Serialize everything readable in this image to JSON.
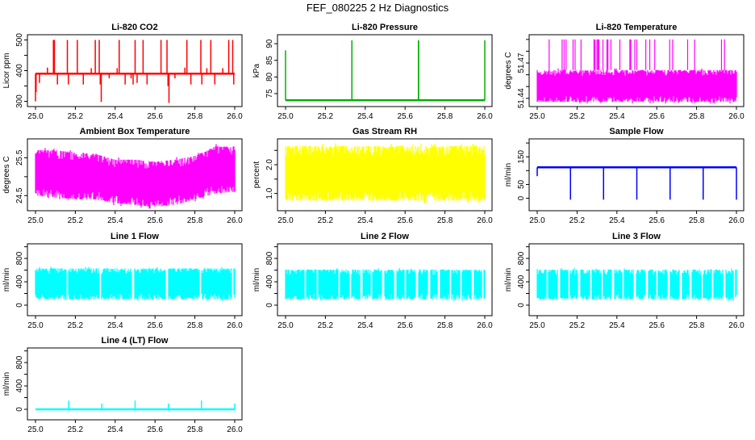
{
  "title": "FEF_080225  2 Hz Diagnostics",
  "chart_data": [
    {
      "type": "line",
      "title": "Li-820 CO2",
      "ylabel": "Licor ppm",
      "color": "#ff0000",
      "xlim": [
        25.0,
        26.0
      ],
      "xticks": [
        "25.0",
        "25.2",
        "25.4",
        "25.6",
        "25.8",
        "26.0"
      ],
      "ylim": [
        283,
        517
      ],
      "yticks": [
        300,
        350,
        400,
        450,
        500
      ],
      "ytick_labels": [
        "300",
        "",
        "400",
        "",
        "500"
      ],
      "baseline": 390,
      "spikes": [
        [
          25.0,
          300
        ],
        [
          25.003,
          330
        ],
        [
          25.02,
          360
        ],
        [
          25.06,
          410
        ],
        [
          25.09,
          500
        ],
        [
          25.095,
          500
        ],
        [
          25.11,
          355
        ],
        [
          25.16,
          500
        ],
        [
          25.165,
          355
        ],
        [
          25.21,
          500
        ],
        [
          25.24,
          355
        ],
        [
          25.28,
          408
        ],
        [
          25.3,
          500
        ],
        [
          25.32,
          500
        ],
        [
          25.325,
          355
        ],
        [
          25.33,
          298
        ],
        [
          25.37,
          375
        ],
        [
          25.41,
          408
        ],
        [
          25.42,
          500
        ],
        [
          25.45,
          355
        ],
        [
          25.48,
          375
        ],
        [
          25.49,
          355
        ],
        [
          25.5,
          500
        ],
        [
          25.51,
          360
        ],
        [
          25.54,
          500
        ],
        [
          25.56,
          355
        ],
        [
          25.63,
          500
        ],
        [
          25.66,
          500
        ],
        [
          25.665,
          350
        ],
        [
          25.67,
          295
        ],
        [
          25.7,
          375
        ],
        [
          25.75,
          410
        ],
        [
          25.76,
          500
        ],
        [
          25.78,
          355
        ],
        [
          25.83,
          500
        ],
        [
          25.835,
          355
        ],
        [
          25.86,
          408
        ],
        [
          25.88,
          500
        ],
        [
          25.9,
          355
        ],
        [
          25.94,
          408
        ],
        [
          25.97,
          500
        ],
        [
          25.99,
          500
        ],
        [
          25.995,
          355
        ]
      ]
    },
    {
      "type": "line",
      "title": "Li-820 Pressure",
      "ylabel": "kPa",
      "color": "#00b000",
      "xlim": [
        25.0,
        26.0
      ],
      "xticks": [
        "25.0",
        "25.2",
        "25.4",
        "25.6",
        "25.8",
        "26.0"
      ],
      "ylim": [
        71.1,
        92.7
      ],
      "yticks": [
        75,
        80,
        85,
        90
      ],
      "ytick_labels": [
        "75",
        "80",
        "85",
        "90"
      ],
      "baseline": 73,
      "spikes": [
        [
          25.0,
          88
        ],
        [
          25.333,
          91
        ],
        [
          25.667,
          91
        ],
        [
          25.668,
          91
        ],
        [
          26.0,
          91
        ]
      ]
    },
    {
      "type": "line",
      "title": "Li-820 Temperature",
      "ylabel": "degrees C",
      "color": "#ff00ff",
      "xlim": [
        25.0,
        26.0
      ],
      "xticks": [
        "25.0",
        "25.2",
        "25.4",
        "25.6",
        "25.8",
        "26.0"
      ],
      "ylim": [
        51.433,
        51.494
      ],
      "yticks": [
        51.44,
        51.45,
        51.46,
        51.47,
        51.48,
        51.49
      ],
      "ytick_labels": [
        "51.44",
        "",
        "",
        "51.47",
        "",
        ""
      ],
      "band": {
        "x": [
          25.0,
          26.0
        ],
        "lower": [
          51.437,
          51.437
        ],
        "upper": [
          51.464,
          51.464
        ]
      },
      "spikes": [
        [
          25.06,
          51.49
        ],
        [
          25.125,
          51.49
        ],
        [
          25.135,
          51.49
        ],
        [
          25.145,
          51.49
        ],
        [
          25.18,
          51.49
        ],
        [
          25.19,
          51.49
        ],
        [
          25.22,
          51.49
        ],
        [
          25.285,
          51.49
        ],
        [
          25.29,
          51.49
        ],
        [
          25.3,
          51.49
        ],
        [
          25.305,
          51.49
        ],
        [
          25.31,
          51.49
        ],
        [
          25.33,
          51.49
        ],
        [
          25.35,
          51.49
        ],
        [
          25.355,
          51.49
        ],
        [
          25.37,
          51.49
        ],
        [
          25.415,
          51.49
        ],
        [
          25.465,
          51.49
        ],
        [
          25.47,
          51.49
        ],
        [
          25.49,
          51.49
        ],
        [
          25.5,
          51.49
        ],
        [
          25.545,
          51.49
        ],
        [
          25.565,
          51.49
        ],
        [
          25.59,
          51.49
        ],
        [
          25.665,
          51.49
        ],
        [
          25.68,
          51.49
        ],
        [
          25.755,
          51.49
        ],
        [
          25.79,
          51.49
        ],
        [
          25.925,
          51.49
        ],
        [
          25.94,
          51.49
        ]
      ]
    },
    {
      "type": "line",
      "title": "Ambient Box Temperature",
      "ylabel": "degrees C",
      "color": "#ff00ff",
      "xlim": [
        25.0,
        26.0
      ],
      "xticks": [
        "25.0",
        "25.2",
        "25.4",
        "25.6",
        "25.8",
        "26.0"
      ],
      "ylim": [
        24.1,
        26.0
      ],
      "yticks": [
        24.5,
        25.0,
        25.5
      ],
      "ytick_labels": [
        "24.5",
        "",
        "25.5"
      ],
      "band": {
        "x": [
          25.0,
          25.1,
          25.2,
          25.3,
          25.4,
          25.5,
          25.6,
          25.7,
          25.8,
          25.9,
          26.0
        ],
        "lower": [
          24.5,
          24.45,
          24.4,
          24.4,
          24.3,
          24.25,
          24.2,
          24.25,
          24.4,
          24.55,
          24.6
        ],
        "upper": [
          25.7,
          25.7,
          25.65,
          25.6,
          25.45,
          25.45,
          25.4,
          25.45,
          25.55,
          25.8,
          25.8
        ]
      }
    },
    {
      "type": "line",
      "title": "Gas Stream RH",
      "ylabel": "percent",
      "color": "#ffff00",
      "xlim": [
        25.0,
        26.0
      ],
      "xticks": [
        "25.0",
        "25.2",
        "25.4",
        "25.6",
        "25.8",
        "26.0"
      ],
      "ylim": [
        0.4,
        2.9
      ],
      "yticks": [
        1.0,
        1.5,
        2.0,
        2.5
      ],
      "ytick_labels": [
        "1.0",
        "",
        "2.0",
        ""
      ],
      "band": {
        "x": [
          25.0,
          26.0
        ],
        "lower": [
          0.75,
          0.75
        ],
        "upper": [
          2.65,
          2.65
        ]
      }
    },
    {
      "type": "line",
      "title": "Sample Flow",
      "ylabel": "ml/min",
      "color": "#0000ff",
      "xlim": [
        25.0,
        26.0
      ],
      "xticks": [
        "25.0",
        "25.2",
        "25.4",
        "25.6",
        "25.8",
        "26.0"
      ],
      "ylim": [
        -45,
        215
      ],
      "yticks": [
        0,
        50,
        100,
        150,
        200
      ],
      "ytick_labels": [
        "0",
        "50",
        "",
        "150",
        ""
      ],
      "baseline": 112,
      "spikes": [
        [
          25.0,
          80
        ],
        [
          25.167,
          -5
        ],
        [
          25.333,
          -5
        ],
        [
          25.5,
          -5
        ],
        [
          25.667,
          -5
        ],
        [
          25.833,
          -5
        ],
        [
          26.0,
          -5
        ]
      ]
    },
    {
      "type": "line",
      "title": "Line 1 Flow",
      "ylabel": "ml/min",
      "color": "#00ffff",
      "xlim": [
        25.0,
        26.0
      ],
      "xticks": [
        "25.0",
        "25.2",
        "25.4",
        "25.6",
        "25.8",
        "26.0"
      ],
      "ylim": [
        -180,
        1050
      ],
      "yticks": [
        0,
        200,
        400,
        600,
        800,
        1000
      ],
      "ytick_labels": [
        "0",
        "",
        "400",
        "",
        "800",
        ""
      ],
      "band": {
        "x": [
          25.0,
          26.0
        ],
        "lower": [
          100,
          100
        ],
        "upper": [
          630,
          630
        ]
      },
      "gaps": [
        25.16,
        25.325,
        25.49,
        25.66,
        25.828,
        25.99
      ]
    },
    {
      "type": "line",
      "title": "Line 2 Flow",
      "ylabel": "ml/min",
      "color": "#00ffff",
      "xlim": [
        25.0,
        26.0
      ],
      "xticks": [
        "25.0",
        "25.2",
        "25.4",
        "25.6",
        "25.8",
        "26.0"
      ],
      "ylim": [
        -180,
        1050
      ],
      "yticks": [
        0,
        200,
        400,
        600,
        800,
        1000
      ],
      "ytick_labels": [
        "0",
        "",
        "400",
        "",
        "800",
        ""
      ],
      "band": {
        "x": [
          25.0,
          26.0
        ],
        "lower": [
          100,
          100
        ],
        "upper": [
          610,
          610
        ]
      },
      "gaps": [
        25.1,
        25.16,
        25.27,
        25.325,
        25.38,
        25.43,
        25.49,
        25.55,
        25.6,
        25.66,
        25.72,
        25.77,
        25.828,
        25.88,
        25.94,
        25.99
      ]
    },
    {
      "type": "line",
      "title": "Line 3 Flow",
      "ylabel": "ml/min",
      "color": "#00ffff",
      "xlim": [
        25.0,
        26.0
      ],
      "xticks": [
        "25.0",
        "25.2",
        "25.4",
        "25.6",
        "25.8",
        "26.0"
      ],
      "ylim": [
        -180,
        1050
      ],
      "yticks": [
        0,
        200,
        400,
        600,
        800,
        1000
      ],
      "ytick_labels": [
        "0",
        "",
        "400",
        "",
        "800",
        ""
      ],
      "band": {
        "x": [
          25.0,
          26.0
        ],
        "lower": [
          100,
          100
        ],
        "upper": [
          610,
          610
        ]
      },
      "gaps": [
        25.05,
        25.11,
        25.16,
        25.21,
        25.27,
        25.325,
        25.38,
        25.43,
        25.49,
        25.55,
        25.6,
        25.66,
        25.72,
        25.77,
        25.828,
        25.88,
        25.94,
        25.99
      ]
    },
    {
      "type": "line",
      "title": "Line 4 (LT) Flow",
      "ylabel": "ml/min",
      "color": "#00ffff",
      "xlim": [
        25.0,
        26.0
      ],
      "xticks": [
        "25.0",
        "25.2",
        "25.4",
        "25.6",
        "25.8",
        "26.0"
      ],
      "ylim": [
        -180,
        1050
      ],
      "yticks": [
        0,
        200,
        400,
        600,
        800,
        1000
      ],
      "ytick_labels": [
        "0",
        "",
        "400",
        "",
        "800",
        ""
      ],
      "baseline": 0,
      "spikes": [
        [
          25.167,
          150
        ],
        [
          25.333,
          100
        ],
        [
          25.5,
          150
        ],
        [
          25.667,
          100
        ],
        [
          25.833,
          150
        ],
        [
          26.0,
          100
        ]
      ]
    }
  ]
}
